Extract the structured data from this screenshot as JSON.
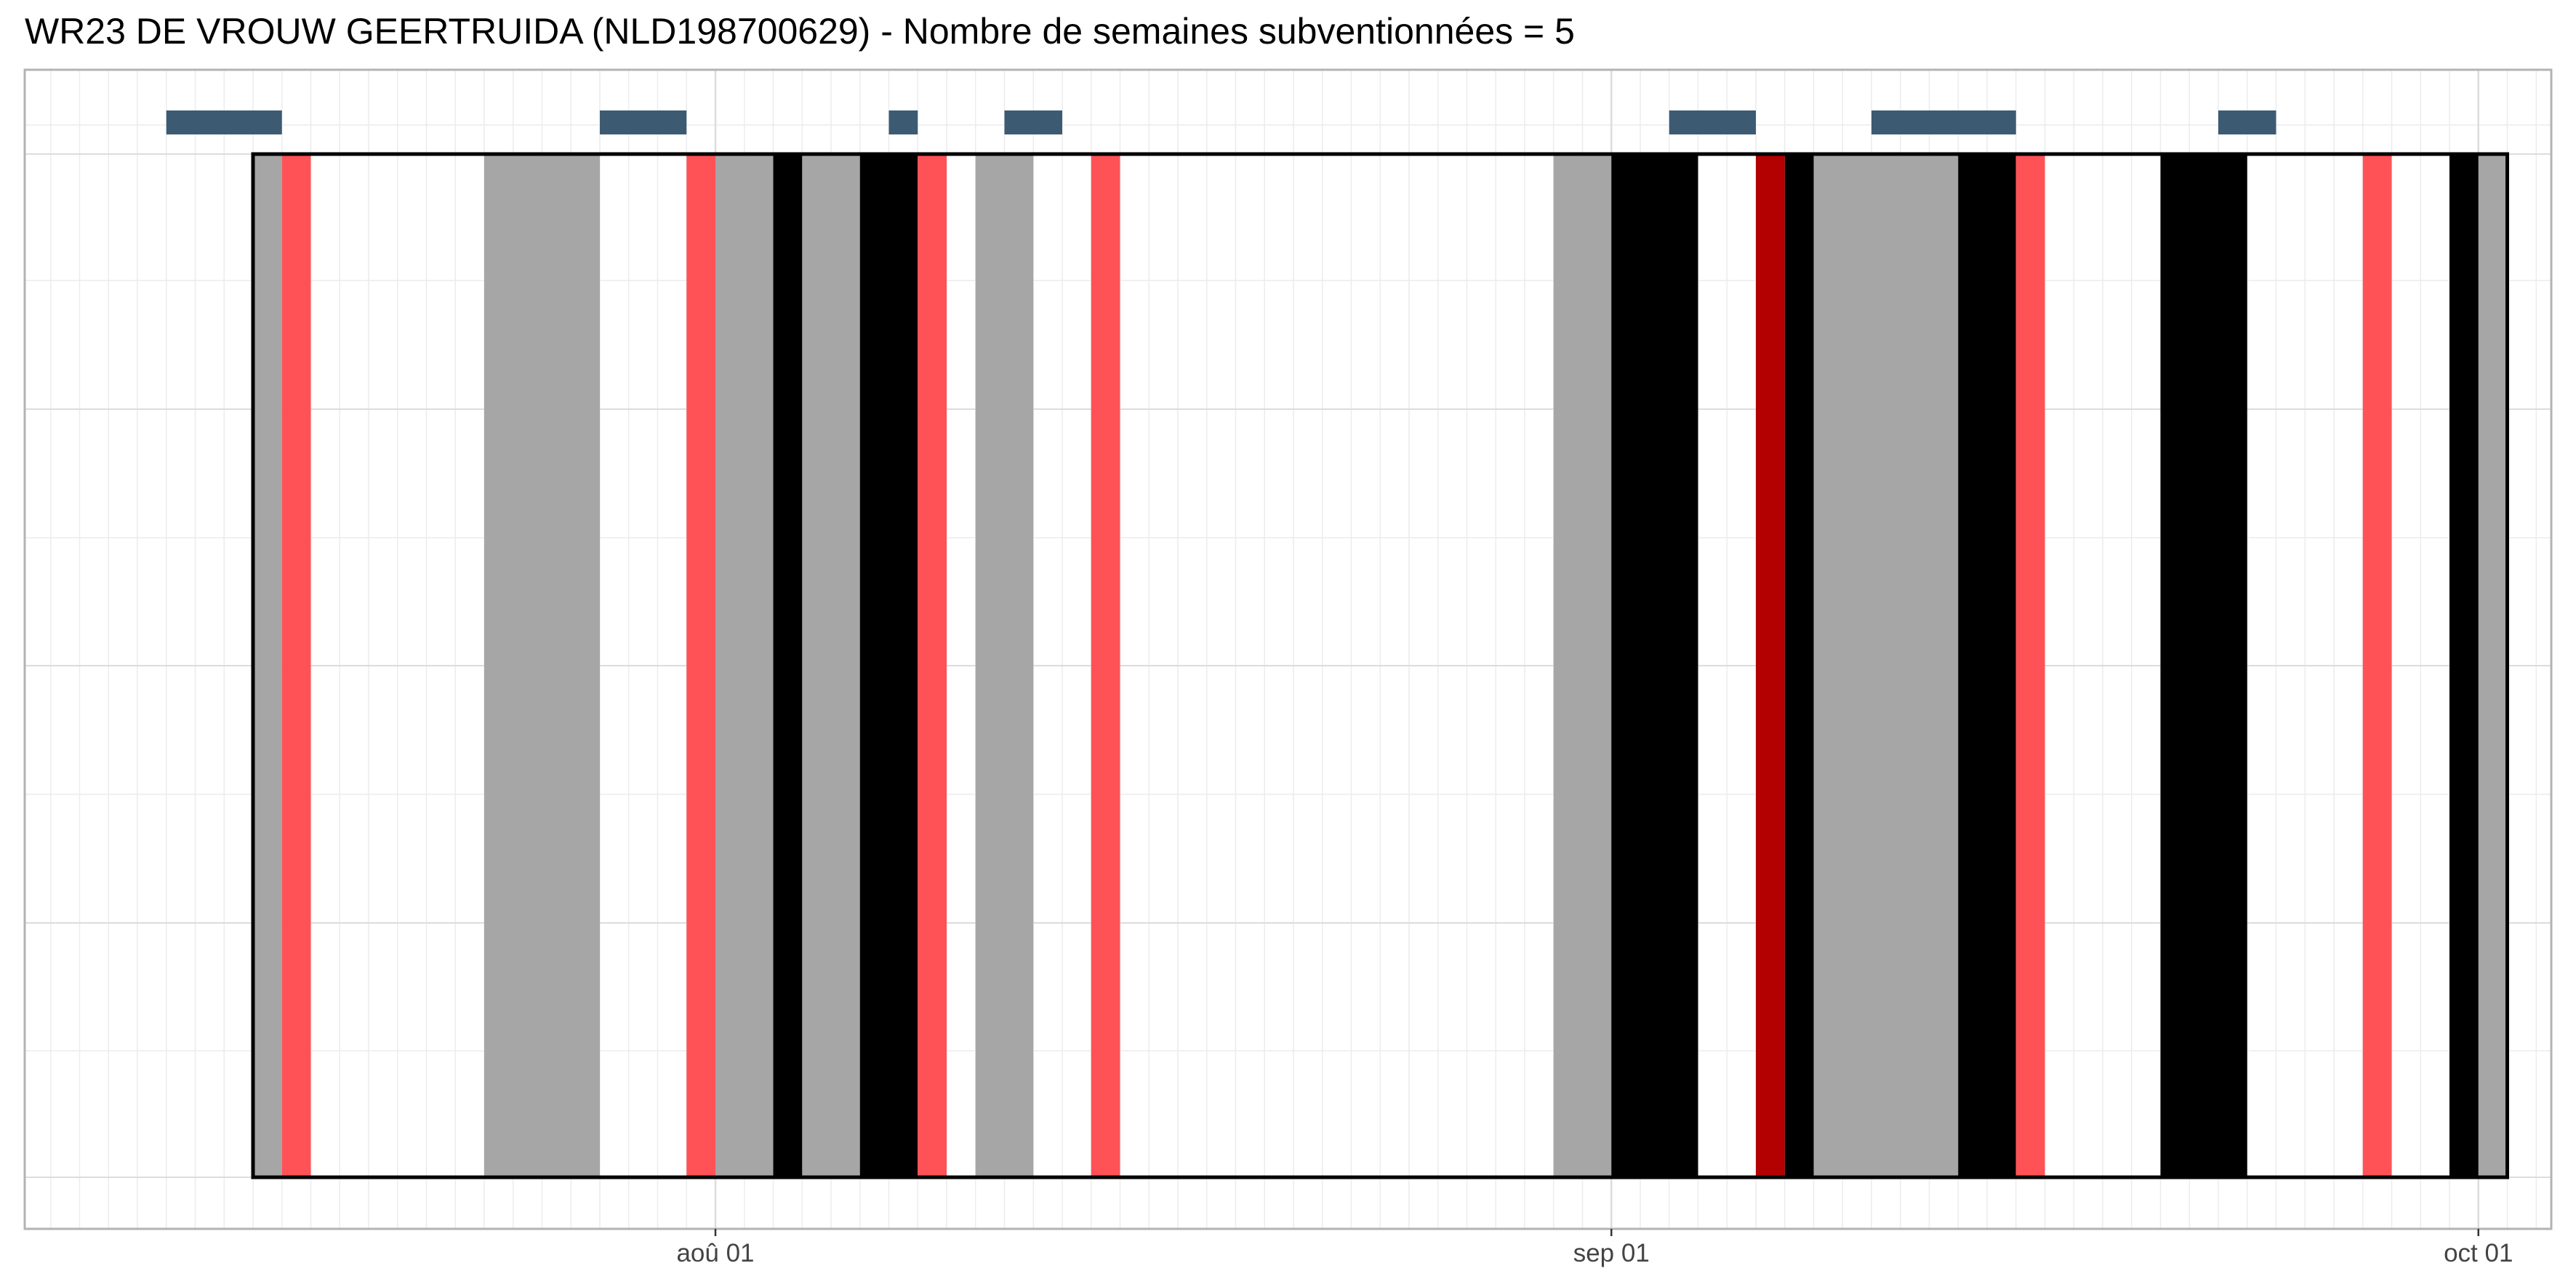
{
  "chart_data": {
    "type": "timeline",
    "title": "WR23 DE VROUW GEERTRUIDA (NLD198700629) - Nombre de semaines subventionnées = 5",
    "xlabel": "",
    "ylabel": "",
    "x_range": [
      "2023-07-09",
      "2023-10-03"
    ],
    "x_ticks": [
      {
        "date": "2023-08-01",
        "label": "aoû 01"
      },
      {
        "date": "2023-09-01",
        "label": "sep 01"
      },
      {
        "date": "2023-10-01",
        "label": "oct 01"
      }
    ],
    "grid": true,
    "frame": {
      "start": "2023-07-16",
      "end": "2023-10-02"
    },
    "series": [
      {
        "color": "#a6a6a6",
        "intervals": [
          [
            "2023-07-16",
            "2023-07-17"
          ],
          [
            "2023-07-24",
            "2023-07-28"
          ],
          [
            "2023-08-01",
            "2023-08-03"
          ],
          [
            "2023-08-04",
            "2023-08-06"
          ],
          [
            "2023-08-10",
            "2023-08-12"
          ],
          [
            "2023-08-30",
            "2023-09-01"
          ],
          [
            "2023-09-08",
            "2023-09-13"
          ],
          [
            "2023-10-01",
            "2023-10-02"
          ]
        ]
      },
      {
        "color": "#000000",
        "intervals": [
          [
            "2023-08-03",
            "2023-08-04"
          ],
          [
            "2023-08-06",
            "2023-08-08"
          ],
          [
            "2023-09-01",
            "2023-09-04"
          ],
          [
            "2023-09-07",
            "2023-09-08"
          ],
          [
            "2023-09-13",
            "2023-09-15"
          ],
          [
            "2023-09-20",
            "2023-09-23"
          ],
          [
            "2023-09-30",
            "2023-10-01"
          ]
        ]
      },
      {
        "color": "#ff5257",
        "intervals": [
          [
            "2023-07-17",
            "2023-07-18"
          ],
          [
            "2023-07-31",
            "2023-08-01"
          ],
          [
            "2023-08-08",
            "2023-08-09"
          ],
          [
            "2023-08-14",
            "2023-08-15"
          ],
          [
            "2023-09-15",
            "2023-09-16"
          ],
          [
            "2023-09-27",
            "2023-09-28"
          ]
        ]
      },
      {
        "color": "#b30000",
        "intervals": [
          [
            "2023-09-06",
            "2023-09-07"
          ]
        ]
      },
      {
        "color": "#3d5a73",
        "intervals": [
          [
            "2023-07-13",
            "2023-07-17"
          ],
          [
            "2023-07-28",
            "2023-07-31"
          ],
          [
            "2023-08-07",
            "2023-08-08"
          ],
          [
            "2023-08-11",
            "2023-08-13"
          ],
          [
            "2023-09-03",
            "2023-09-06"
          ],
          [
            "2023-09-10",
            "2023-09-15"
          ],
          [
            "2023-09-22",
            "2023-09-24"
          ]
        ]
      }
    ]
  }
}
